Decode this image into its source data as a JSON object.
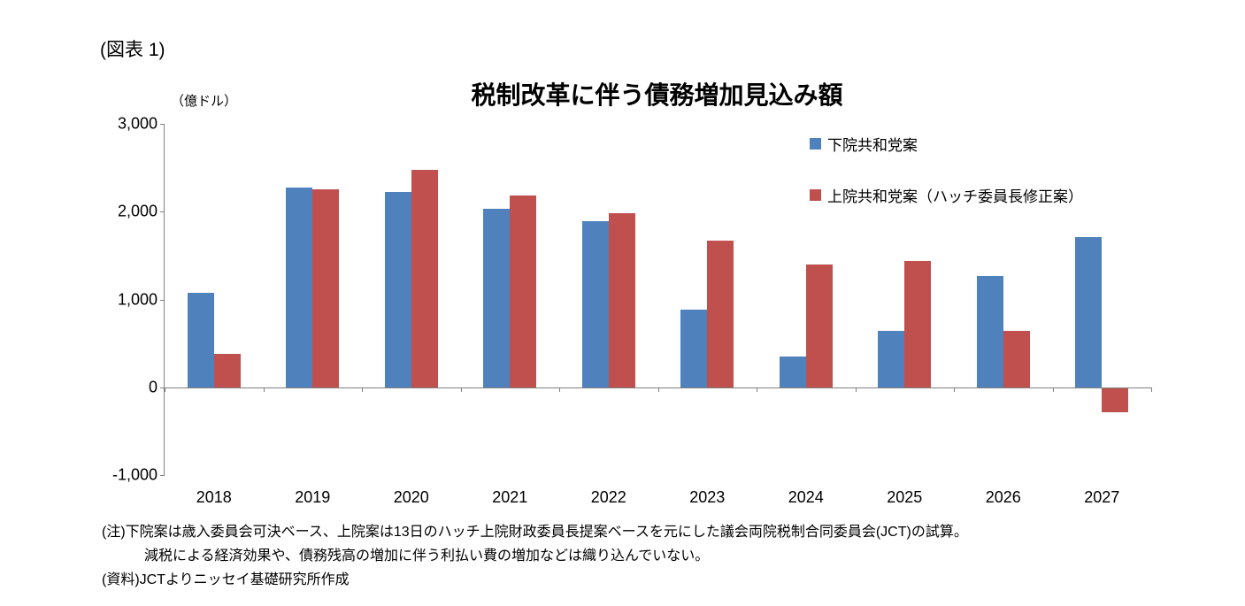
{
  "figure_label": "(図表 1)",
  "chart_data": {
    "type": "bar",
    "title": "税制改革に伴う債務増加見込み額",
    "unit_label": "（億ドル）",
    "categories": [
      "2018",
      "2019",
      "2020",
      "2021",
      "2022",
      "2023",
      "2024",
      "2025",
      "2026",
      "2027"
    ],
    "series": [
      {
        "name": "下院共和党案",
        "color": "#4F81BD",
        "values": [
          1080,
          2270,
          2220,
          2030,
          1890,
          880,
          350,
          640,
          1270,
          1710
        ]
      },
      {
        "name": "上院共和党案（ハッチ委員長修正案）",
        "color": "#C0504D",
        "values": [
          380,
          2250,
          2480,
          2180,
          1980,
          1670,
          1400,
          1440,
          640,
          -280
        ]
      }
    ],
    "ylim": [
      -1000,
      3000
    ],
    "yticks": [
      {
        "value": 3000,
        "label": "3,000"
      },
      {
        "value": 2000,
        "label": "2,000"
      },
      {
        "value": 1000,
        "label": "1,000"
      },
      {
        "value": 0,
        "label": "0"
      },
      {
        "value": -1000,
        "label": "-1,000"
      }
    ],
    "grid": false,
    "legend_position": "top-right"
  },
  "notes": {
    "line1": "(注)下院案は歳入委員会可決ベース、上院案は13日のハッチ上院財政委員長提案ベースを元にした議会両院税制合同委員会(JCT)の試算。",
    "line2": "減税による経済効果や、債務残高の増加に伴う利払い費の増加などは織り込んでいない。",
    "line3": "(資料)JCTよりニッセイ基礎研究所作成"
  }
}
